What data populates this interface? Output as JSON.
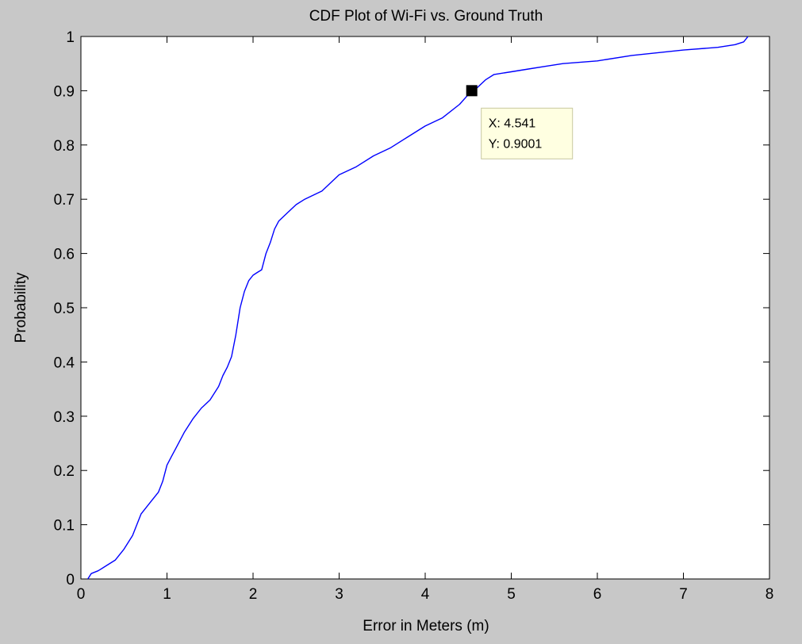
{
  "chart_data": {
    "type": "line",
    "title": "CDF Plot of Wi-Fi vs. Ground Truth",
    "xlabel": "Error in Meters (m)",
    "ylabel": "Probability",
    "xlim": [
      0,
      8
    ],
    "ylim": [
      0,
      1
    ],
    "grid": false,
    "x_ticks": [
      {
        "value": 0,
        "label": "0"
      },
      {
        "value": 1,
        "label": "1"
      },
      {
        "value": 2,
        "label": "2"
      },
      {
        "value": 3,
        "label": "3"
      },
      {
        "value": 4,
        "label": "4"
      },
      {
        "value": 5,
        "label": "5"
      },
      {
        "value": 6,
        "label": "6"
      },
      {
        "value": 7,
        "label": "7"
      },
      {
        "value": 8,
        "label": "8"
      }
    ],
    "y_ticks": [
      {
        "value": 0,
        "label": "0"
      },
      {
        "value": 0.1,
        "label": "0.1"
      },
      {
        "value": 0.2,
        "label": "0.2"
      },
      {
        "value": 0.3,
        "label": "0.3"
      },
      {
        "value": 0.4,
        "label": "0.4"
      },
      {
        "value": 0.5,
        "label": "0.5"
      },
      {
        "value": 0.6,
        "label": "0.6"
      },
      {
        "value": 0.7,
        "label": "0.7"
      },
      {
        "value": 0.8,
        "label": "0.8"
      },
      {
        "value": 0.9,
        "label": "0.9"
      },
      {
        "value": 1,
        "label": "1"
      }
    ],
    "series": [
      {
        "color": "#0000ff",
        "x": [
          0.08,
          0.12,
          0.2,
          0.3,
          0.4,
          0.5,
          0.6,
          0.7,
          0.8,
          0.9,
          0.95,
          1.0,
          1.05,
          1.1,
          1.2,
          1.3,
          1.4,
          1.5,
          1.6,
          1.65,
          1.7,
          1.75,
          1.8,
          1.85,
          1.9,
          1.95,
          2.0,
          2.05,
          2.1,
          2.15,
          2.2,
          2.25,
          2.3,
          2.4,
          2.5,
          2.6,
          2.8,
          3.0,
          3.2,
          3.4,
          3.6,
          3.8,
          4.0,
          4.2,
          4.4,
          4.541,
          4.6,
          4.7,
          4.8,
          5.0,
          5.2,
          5.4,
          5.6,
          6.0,
          6.4,
          7.0,
          7.4,
          7.6,
          7.7,
          7.75
        ],
        "y": [
          0.0,
          0.01,
          0.015,
          0.025,
          0.035,
          0.055,
          0.08,
          0.12,
          0.14,
          0.16,
          0.18,
          0.21,
          0.225,
          0.24,
          0.27,
          0.295,
          0.315,
          0.33,
          0.355,
          0.375,
          0.39,
          0.41,
          0.45,
          0.5,
          0.53,
          0.55,
          0.56,
          0.565,
          0.57,
          0.6,
          0.62,
          0.645,
          0.66,
          0.675,
          0.69,
          0.7,
          0.715,
          0.745,
          0.76,
          0.78,
          0.795,
          0.815,
          0.835,
          0.85,
          0.875,
          0.9001,
          0.905,
          0.92,
          0.93,
          0.935,
          0.94,
          0.945,
          0.95,
          0.955,
          0.965,
          0.975,
          0.98,
          0.985,
          0.99,
          1.0
        ]
      }
    ],
    "datatip": {
      "x": 4.541,
      "y": 0.9001,
      "x_text": "X: 4.541",
      "y_text": "Y: 0.9001"
    }
  }
}
